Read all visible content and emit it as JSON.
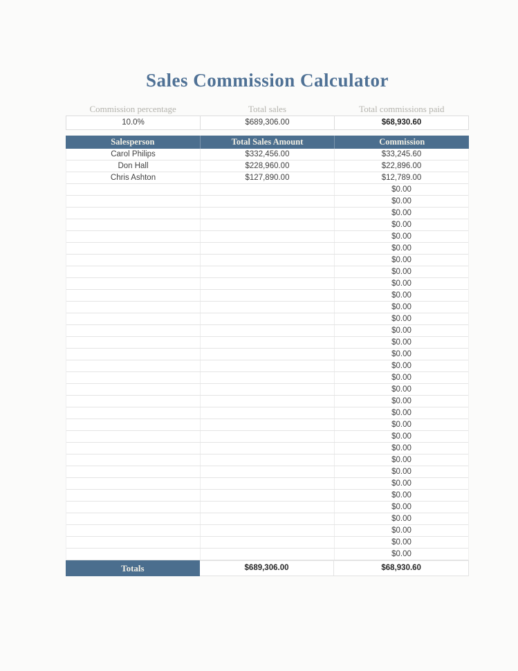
{
  "page": {
    "title": "Sales Commission Calculator"
  },
  "summary": {
    "fields": [
      {
        "label": "Commission percentage",
        "value": "10.0%",
        "bold": false
      },
      {
        "label": "Total sales",
        "value": "$689,306.00",
        "bold": false
      },
      {
        "label": "Total commissions paid",
        "value": "$68,930.60",
        "bold": true
      }
    ]
  },
  "table": {
    "headers": [
      "Salesperson",
      "Total Sales Amount",
      "Commission"
    ],
    "rows": [
      {
        "salesperson": "Carol Philips",
        "total_sales": "$332,456.00",
        "commission": "$33,245.60"
      },
      {
        "salesperson": "Don Hall",
        "total_sales": "$228,960.00",
        "commission": "$22,896.00"
      },
      {
        "salesperson": "Chris Ashton",
        "total_sales": "$127,890.00",
        "commission": "$12,789.00"
      }
    ],
    "empty_row_count": 32,
    "empty_commission_value": "$0.00",
    "totals": {
      "label": "Totals",
      "total_sales": "$689,306.00",
      "commission": "$68,930.60"
    }
  },
  "colors": {
    "accent_header_blue": "#4b6e8e",
    "title_blue": "#4f7195",
    "summary_label_gray": "#b4b3ad"
  }
}
